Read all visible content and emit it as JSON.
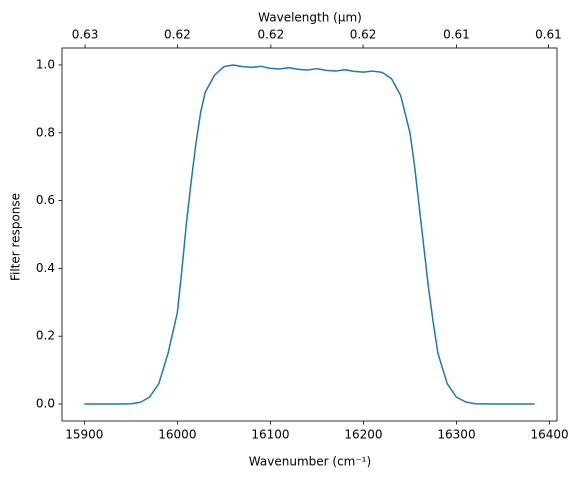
{
  "chart_data": {
    "type": "line",
    "xlabel": "Wavenumber (cm⁻¹)",
    "ylabel": "Filter response",
    "x2label": "Wavelength (μm)",
    "x": [
      15900,
      15920,
      15940,
      15950,
      15960,
      15970,
      15980,
      15990,
      16000,
      16005,
      16010,
      16015,
      16020,
      16025,
      16030,
      16040,
      16050,
      16060,
      16070,
      16080,
      16090,
      16100,
      16110,
      16120,
      16130,
      16140,
      16150,
      16160,
      16170,
      16180,
      16190,
      16200,
      16210,
      16220,
      16230,
      16240,
      16250,
      16255,
      16260,
      16265,
      16270,
      16275,
      16280,
      16290,
      16300,
      16310,
      16320,
      16340,
      16360,
      16384
    ],
    "series": [
      {
        "name": "Filter response",
        "color": "#1f77b4",
        "values": [
          0,
          0,
          0,
          0.001,
          0.005,
          0.02,
          0.06,
          0.15,
          0.27,
          0.4,
          0.54,
          0.66,
          0.77,
          0.86,
          0.92,
          0.97,
          0.995,
          1.0,
          0.995,
          0.993,
          0.996,
          0.99,
          0.988,
          0.992,
          0.987,
          0.985,
          0.989,
          0.984,
          0.982,
          0.986,
          0.981,
          0.979,
          0.982,
          0.978,
          0.96,
          0.91,
          0.8,
          0.7,
          0.58,
          0.46,
          0.34,
          0.24,
          0.15,
          0.06,
          0.02,
          0.006,
          0.001,
          0,
          0,
          0
        ]
      }
    ],
    "xlim": [
      15876,
      16408
    ],
    "xticks": [
      15900,
      16000,
      16100,
      16200,
      16300,
      16400
    ],
    "ylim": [
      -0.05,
      1.05
    ],
    "yticks": [
      {
        "value": 0,
        "label": "0.0"
      },
      0.2,
      0.4,
      0.6,
      0.8,
      {
        "value": 1,
        "label": "1.0"
      }
    ],
    "x2_scale": "reciprocal",
    "x2ticks": [
      {
        "value": 0.6289,
        "label": "0.63"
      },
      {
        "value": 0.625,
        "label": "0.62"
      },
      {
        "value": 0.6211,
        "label": "0.62"
      },
      {
        "value": 0.6173,
        "label": "0.62"
      },
      {
        "value": 0.6135,
        "label": "0.61"
      },
      {
        "value": 0.6098,
        "label": "0.61"
      }
    ],
    "grid": false
  }
}
